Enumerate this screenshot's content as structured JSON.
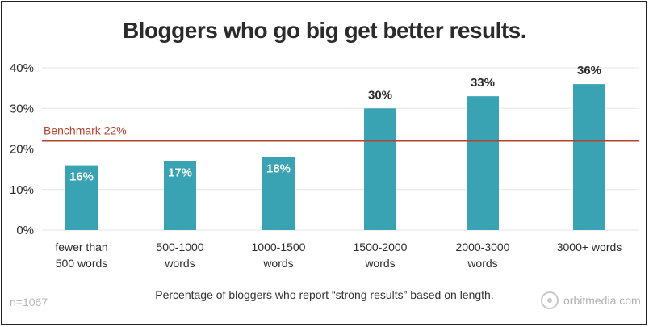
{
  "chart_data": {
    "type": "bar",
    "title": "Bloggers who go big get better results.",
    "categories": [
      [
        "fewer than",
        "500 words"
      ],
      [
        "500-1000",
        "words"
      ],
      [
        "1000-1500",
        "words"
      ],
      [
        "1500-2000",
        "words"
      ],
      [
        "2000-3000",
        "words"
      ],
      [
        "3000+ words"
      ]
    ],
    "values": [
      16,
      17,
      18,
      30,
      33,
      36
    ],
    "value_labels": [
      "16%",
      "17%",
      "18%",
      "30%",
      "33%",
      "36%"
    ],
    "y_ticks": [
      0,
      10,
      20,
      30,
      40
    ],
    "y_tick_labels": [
      "0%",
      "10%",
      "20%",
      "30%",
      "40%"
    ],
    "ylim": [
      0,
      40
    ],
    "benchmark": {
      "label": "Benchmark 22%",
      "value": 22
    },
    "grid": true,
    "colors": {
      "bar": "#3aa3b3",
      "benchmark": "#b5412f",
      "grid": "#e6e6e6",
      "text": "#2b2b2b"
    }
  },
  "footnote": "n=1067",
  "caption": "Percentage of bloggers who report “strong results” based on length.",
  "brand": {
    "name": "orbitmedia.com",
    "icon": "orbit-logo-icon"
  }
}
